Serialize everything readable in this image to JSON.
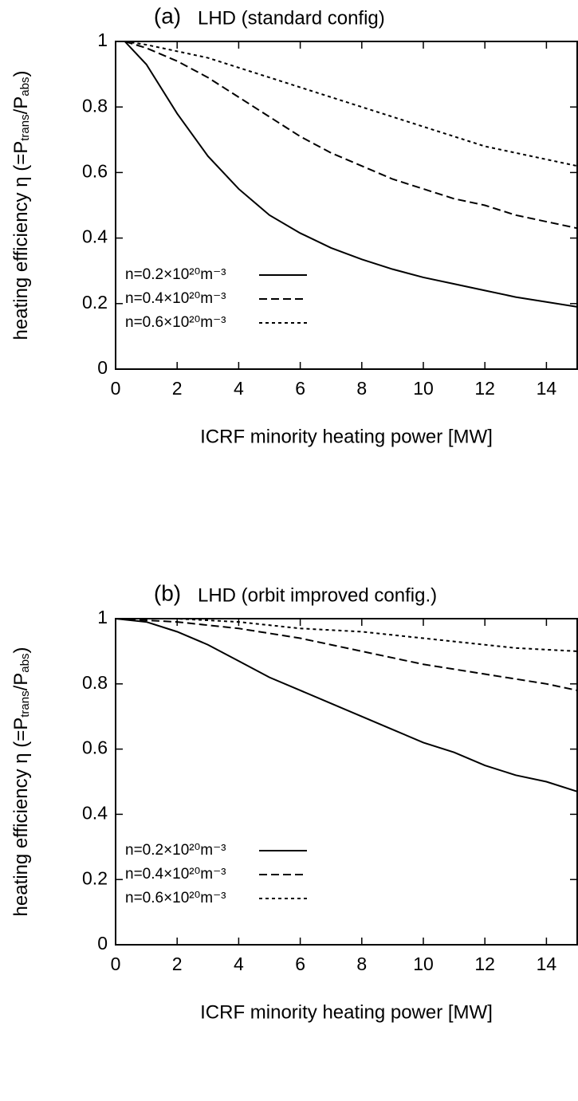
{
  "chart_data": [
    {
      "type": "line",
      "panel_label": "(a)",
      "title": "LHD (standard config)",
      "xlabel": "ICRF minority heating power [MW]",
      "ylabel": [
        "heating efficiency η (=P",
        "trans",
        "/P",
        "abs",
        ")"
      ],
      "x": [
        0.3,
        1,
        2,
        3,
        4,
        5,
        6,
        7,
        8,
        9,
        10,
        11,
        12,
        13,
        14,
        15
      ],
      "xlim": [
        0,
        15
      ],
      "xticks": [
        0,
        2,
        4,
        6,
        8,
        10,
        12,
        14
      ],
      "ylim": [
        0,
        1
      ],
      "yticks": [
        0,
        0.2,
        0.4,
        0.6,
        0.8,
        1
      ],
      "legend": "lower left",
      "series": [
        {
          "name": "n=0.2×10²⁰m⁻³",
          "color": "#000000",
          "linestyle": "solid",
          "values": [
            1,
            0.93,
            0.78,
            0.65,
            0.55,
            0.47,
            0.415,
            0.37,
            0.335,
            0.305,
            0.28,
            0.26,
            0.24,
            0.22,
            0.205,
            0.19
          ]
        },
        {
          "name": "n=0.4×10²⁰m⁻³",
          "color": "#000000",
          "linestyle": "dashed",
          "values": [
            1,
            0.98,
            0.94,
            0.89,
            0.83,
            0.77,
            0.71,
            0.66,
            0.62,
            0.58,
            0.55,
            0.52,
            0.5,
            0.47,
            0.45,
            0.43
          ]
        },
        {
          "name": "n=0.6×10²⁰m⁻³",
          "color": "#000000",
          "linestyle": "dotted",
          "values": [
            1,
            0.99,
            0.97,
            0.95,
            0.92,
            0.89,
            0.86,
            0.83,
            0.8,
            0.77,
            0.74,
            0.71,
            0.68,
            0.66,
            0.64,
            0.62
          ]
        }
      ]
    },
    {
      "type": "line",
      "panel_label": "(b)",
      "title": "LHD (orbit improved config.)",
      "xlabel": "ICRF minority heating power [MW]",
      "ylabel": [
        "heating efficiency η (=P",
        "trans",
        "/P",
        "abs",
        ")"
      ],
      "x": [
        0,
        1,
        2,
        3,
        4,
        5,
        6,
        7,
        8,
        9,
        10,
        11,
        12,
        13,
        14,
        15
      ],
      "xlim": [
        0,
        15
      ],
      "xticks": [
        0,
        2,
        4,
        6,
        8,
        10,
        12,
        14
      ],
      "ylim": [
        0,
        1
      ],
      "yticks": [
        0,
        0.2,
        0.4,
        0.6,
        0.8,
        1
      ],
      "legend": "lower left",
      "series": [
        {
          "name": "n=0.2×10²⁰m⁻³",
          "color": "#000000",
          "linestyle": "solid",
          "values": [
            1,
            0.99,
            0.96,
            0.92,
            0.87,
            0.82,
            0.78,
            0.74,
            0.7,
            0.66,
            0.62,
            0.59,
            0.55,
            0.52,
            0.5,
            0.47
          ]
        },
        {
          "name": "n=0.4×10²⁰m⁻³",
          "color": "#000000",
          "linestyle": "dashed",
          "values": [
            1,
            0.995,
            0.99,
            0.98,
            0.97,
            0.955,
            0.94,
            0.92,
            0.9,
            0.88,
            0.86,
            0.845,
            0.83,
            0.815,
            0.8,
            0.78
          ]
        },
        {
          "name": "n=0.6×10²⁰m⁻³",
          "color": "#000000",
          "linestyle": "dotted",
          "values": [
            1,
            1,
            1,
            0.995,
            0.99,
            0.98,
            0.97,
            0.965,
            0.96,
            0.95,
            0.94,
            0.93,
            0.92,
            0.91,
            0.905,
            0.9
          ]
        }
      ]
    }
  ]
}
